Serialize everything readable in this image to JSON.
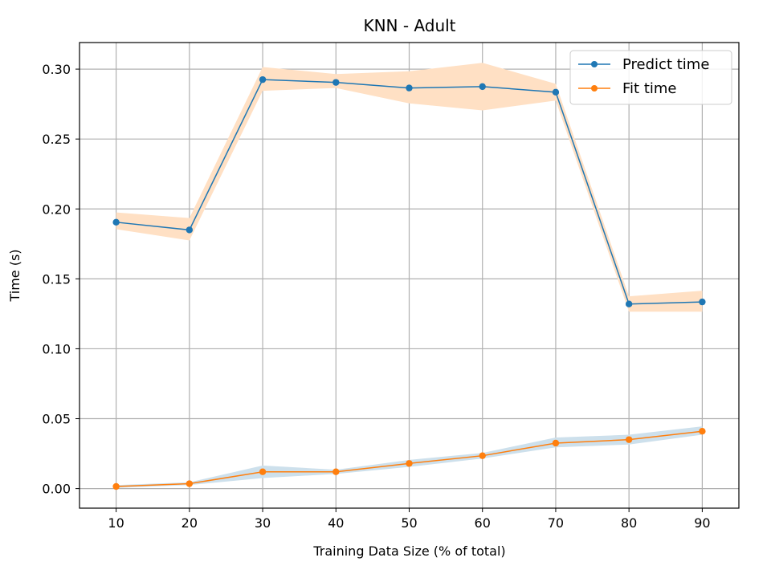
{
  "chart_data": {
    "type": "line",
    "title": "KNN - Adult",
    "xlabel": "Training Data Size (% of total)",
    "ylabel": "Time (s)",
    "x": [
      10,
      20,
      30,
      40,
      50,
      60,
      70,
      80,
      90
    ],
    "xlim": [
      5,
      95
    ],
    "ylim": [
      -0.014,
      0.319
    ],
    "xticks": [
      "10",
      "20",
      "30",
      "40",
      "50",
      "60",
      "70",
      "80",
      "90"
    ],
    "yticks": [
      "0.00",
      "0.05",
      "0.10",
      "0.15",
      "0.20",
      "0.25",
      "0.30"
    ],
    "grid": true,
    "legend_position": "top-right",
    "series": [
      {
        "name": "Predict time",
        "color": "#1f77b4",
        "band_color": "#ffe0c4",
        "values": [
          0.1905,
          0.185,
          0.2925,
          0.2905,
          0.2865,
          0.2875,
          0.2835,
          0.132,
          0.1335
        ],
        "band_low": [
          0.1855,
          0.1775,
          0.2845,
          0.2865,
          0.2755,
          0.2705,
          0.2775,
          0.1265,
          0.1265
        ],
        "band_high": [
          0.1975,
          0.1935,
          0.3015,
          0.2965,
          0.2985,
          0.3045,
          0.2895,
          0.1375,
          0.1415
        ]
      },
      {
        "name": "Fit time",
        "color": "#ff7f0e",
        "band_color": "#cde0ec",
        "values": [
          0.0015,
          0.0035,
          0.012,
          0.012,
          0.018,
          0.0235,
          0.0325,
          0.035,
          0.041
        ],
        "band_low": [
          0.0005,
          0.0025,
          0.0075,
          0.0105,
          0.0155,
          0.0215,
          0.0295,
          0.0315,
          0.0385
        ],
        "band_high": [
          0.0025,
          0.0045,
          0.0165,
          0.0135,
          0.0205,
          0.0255,
          0.0365,
          0.0385,
          0.0445
        ]
      }
    ]
  }
}
